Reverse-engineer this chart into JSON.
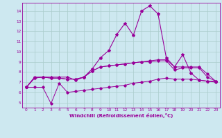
{
  "xlabel": "Windchill (Refroidissement éolien,°C)",
  "bg_color": "#cde8f0",
  "grid_color": "#aacccc",
  "line_color": "#990099",
  "xlim": [
    -0.5,
    23.5
  ],
  "ylim": [
    4.5,
    14.8
  ],
  "xticks": [
    0,
    1,
    2,
    3,
    4,
    5,
    6,
    7,
    8,
    9,
    10,
    11,
    12,
    13,
    14,
    15,
    16,
    17,
    18,
    19,
    20,
    21,
    22,
    23
  ],
  "yticks": [
    5,
    6,
    7,
    8,
    9,
    10,
    11,
    12,
    13,
    14
  ],
  "series": [
    [
      6.5,
      7.5,
      7.5,
      7.5,
      7.5,
      7.5,
      7.2,
      7.5,
      8.3,
      9.4,
      10.1,
      11.7,
      12.8,
      11.6,
      14.0,
      14.5,
      13.7,
      9.4,
      8.5,
      9.7,
      7.9,
      7.2,
      7.1,
      7.1
    ],
    [
      6.5,
      7.4,
      7.5,
      7.4,
      7.4,
      7.3,
      7.3,
      7.5,
      8.1,
      8.5,
      8.6,
      8.7,
      8.8,
      8.9,
      9.0,
      9.1,
      9.2,
      9.2,
      8.5,
      8.5,
      8.5,
      8.5,
      7.8,
      7.1
    ],
    [
      6.5,
      7.4,
      7.5,
      7.4,
      7.4,
      7.3,
      7.3,
      7.5,
      8.1,
      8.5,
      8.6,
      8.7,
      8.8,
      8.9,
      9.0,
      9.0,
      9.1,
      9.1,
      8.2,
      8.4,
      8.4,
      8.4,
      7.5,
      7.1
    ],
    [
      6.5,
      6.5,
      6.5,
      4.9,
      6.9,
      6.0,
      6.1,
      6.2,
      6.3,
      6.4,
      6.5,
      6.6,
      6.7,
      6.9,
      7.0,
      7.1,
      7.3,
      7.4,
      7.3,
      7.3,
      7.3,
      7.2,
      7.1,
      7.0
    ]
  ]
}
